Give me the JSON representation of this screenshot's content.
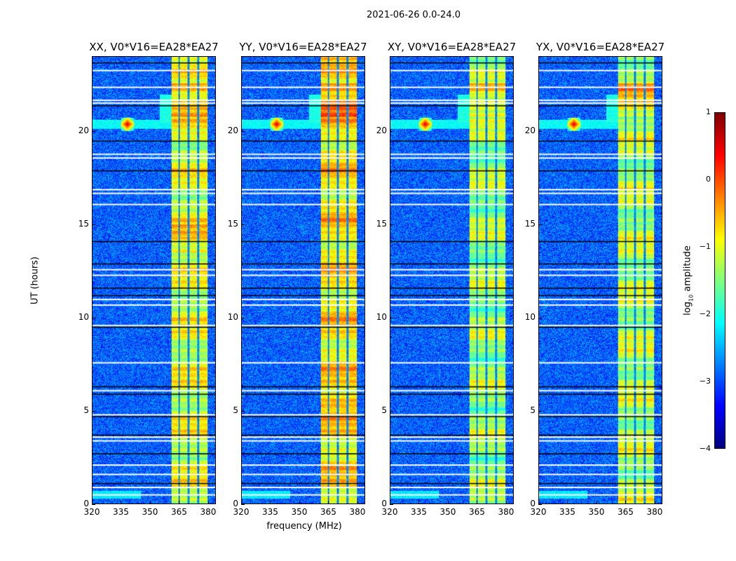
{
  "chart_data": {
    "type": "heatmap",
    "title": "2021-06-26 0.0-24.0",
    "xlabel": "frequency (MHz)",
    "ylabel": "UT (hours)",
    "xlim": [
      320,
      384
    ],
    "ylim": [
      0,
      24
    ],
    "xticks": [
      "320",
      "335",
      "350",
      "365",
      "380"
    ],
    "xtick_values": [
      320,
      335,
      350,
      365,
      380
    ],
    "yticks": [
      "0",
      "5",
      "10",
      "15",
      "20"
    ],
    "ytick_values": [
      0,
      5,
      10,
      15,
      20
    ],
    "colorbar": {
      "label_main": "log",
      "label_sub": "10",
      "label_rest": " amplitude",
      "colormap": "jet",
      "range": [
        -4,
        1
      ],
      "ticks": [
        "1",
        "0",
        "−1",
        "−2",
        "−3",
        "−4"
      ],
      "tick_values": [
        1,
        0,
        -1,
        -2,
        -3,
        -4
      ]
    },
    "panels": [
      {
        "title": "XX, V0*V16=EA28*EA27",
        "rfi_boost": 0.2,
        "seed": 11
      },
      {
        "title": "YY, V0*V16=EA28*EA27",
        "rfi_boost": 0.45,
        "seed": 23
      },
      {
        "title": "XY, V0*V16=EA28*EA27",
        "rfi_boost": -0.1,
        "seed": 37
      },
      {
        "title": "YX, V0*V16=EA28*EA27",
        "rfi_boost": 0.0,
        "seed": 51
      }
    ],
    "background_level": -2.9,
    "rfi_band_mhz": [
      361,
      380
    ],
    "rfi_gaps_mhz": [
      365,
      370,
      375
    ],
    "source": {
      "freq_mhz": 338,
      "time_h": 20.4,
      "peak": 0.6
    },
    "flagged_white_h": [
      23.3,
      22.4,
      21.7,
      21.55,
      18.8,
      18.6,
      16.9,
      16.7,
      16.1,
      12.6,
      12.3,
      11.0,
      10.7,
      9.6,
      7.6,
      6.1,
      4.8,
      3.6,
      3.4,
      2.1,
      1.6,
      0.9,
      0.5
    ],
    "flagged_black_h": [
      23.7,
      21.4,
      19.5,
      17.9,
      14.1,
      12.9,
      11.6,
      11.2,
      9.5,
      6.3,
      5.9,
      4.7,
      3.7,
      2.7,
      1.1
    ]
  }
}
